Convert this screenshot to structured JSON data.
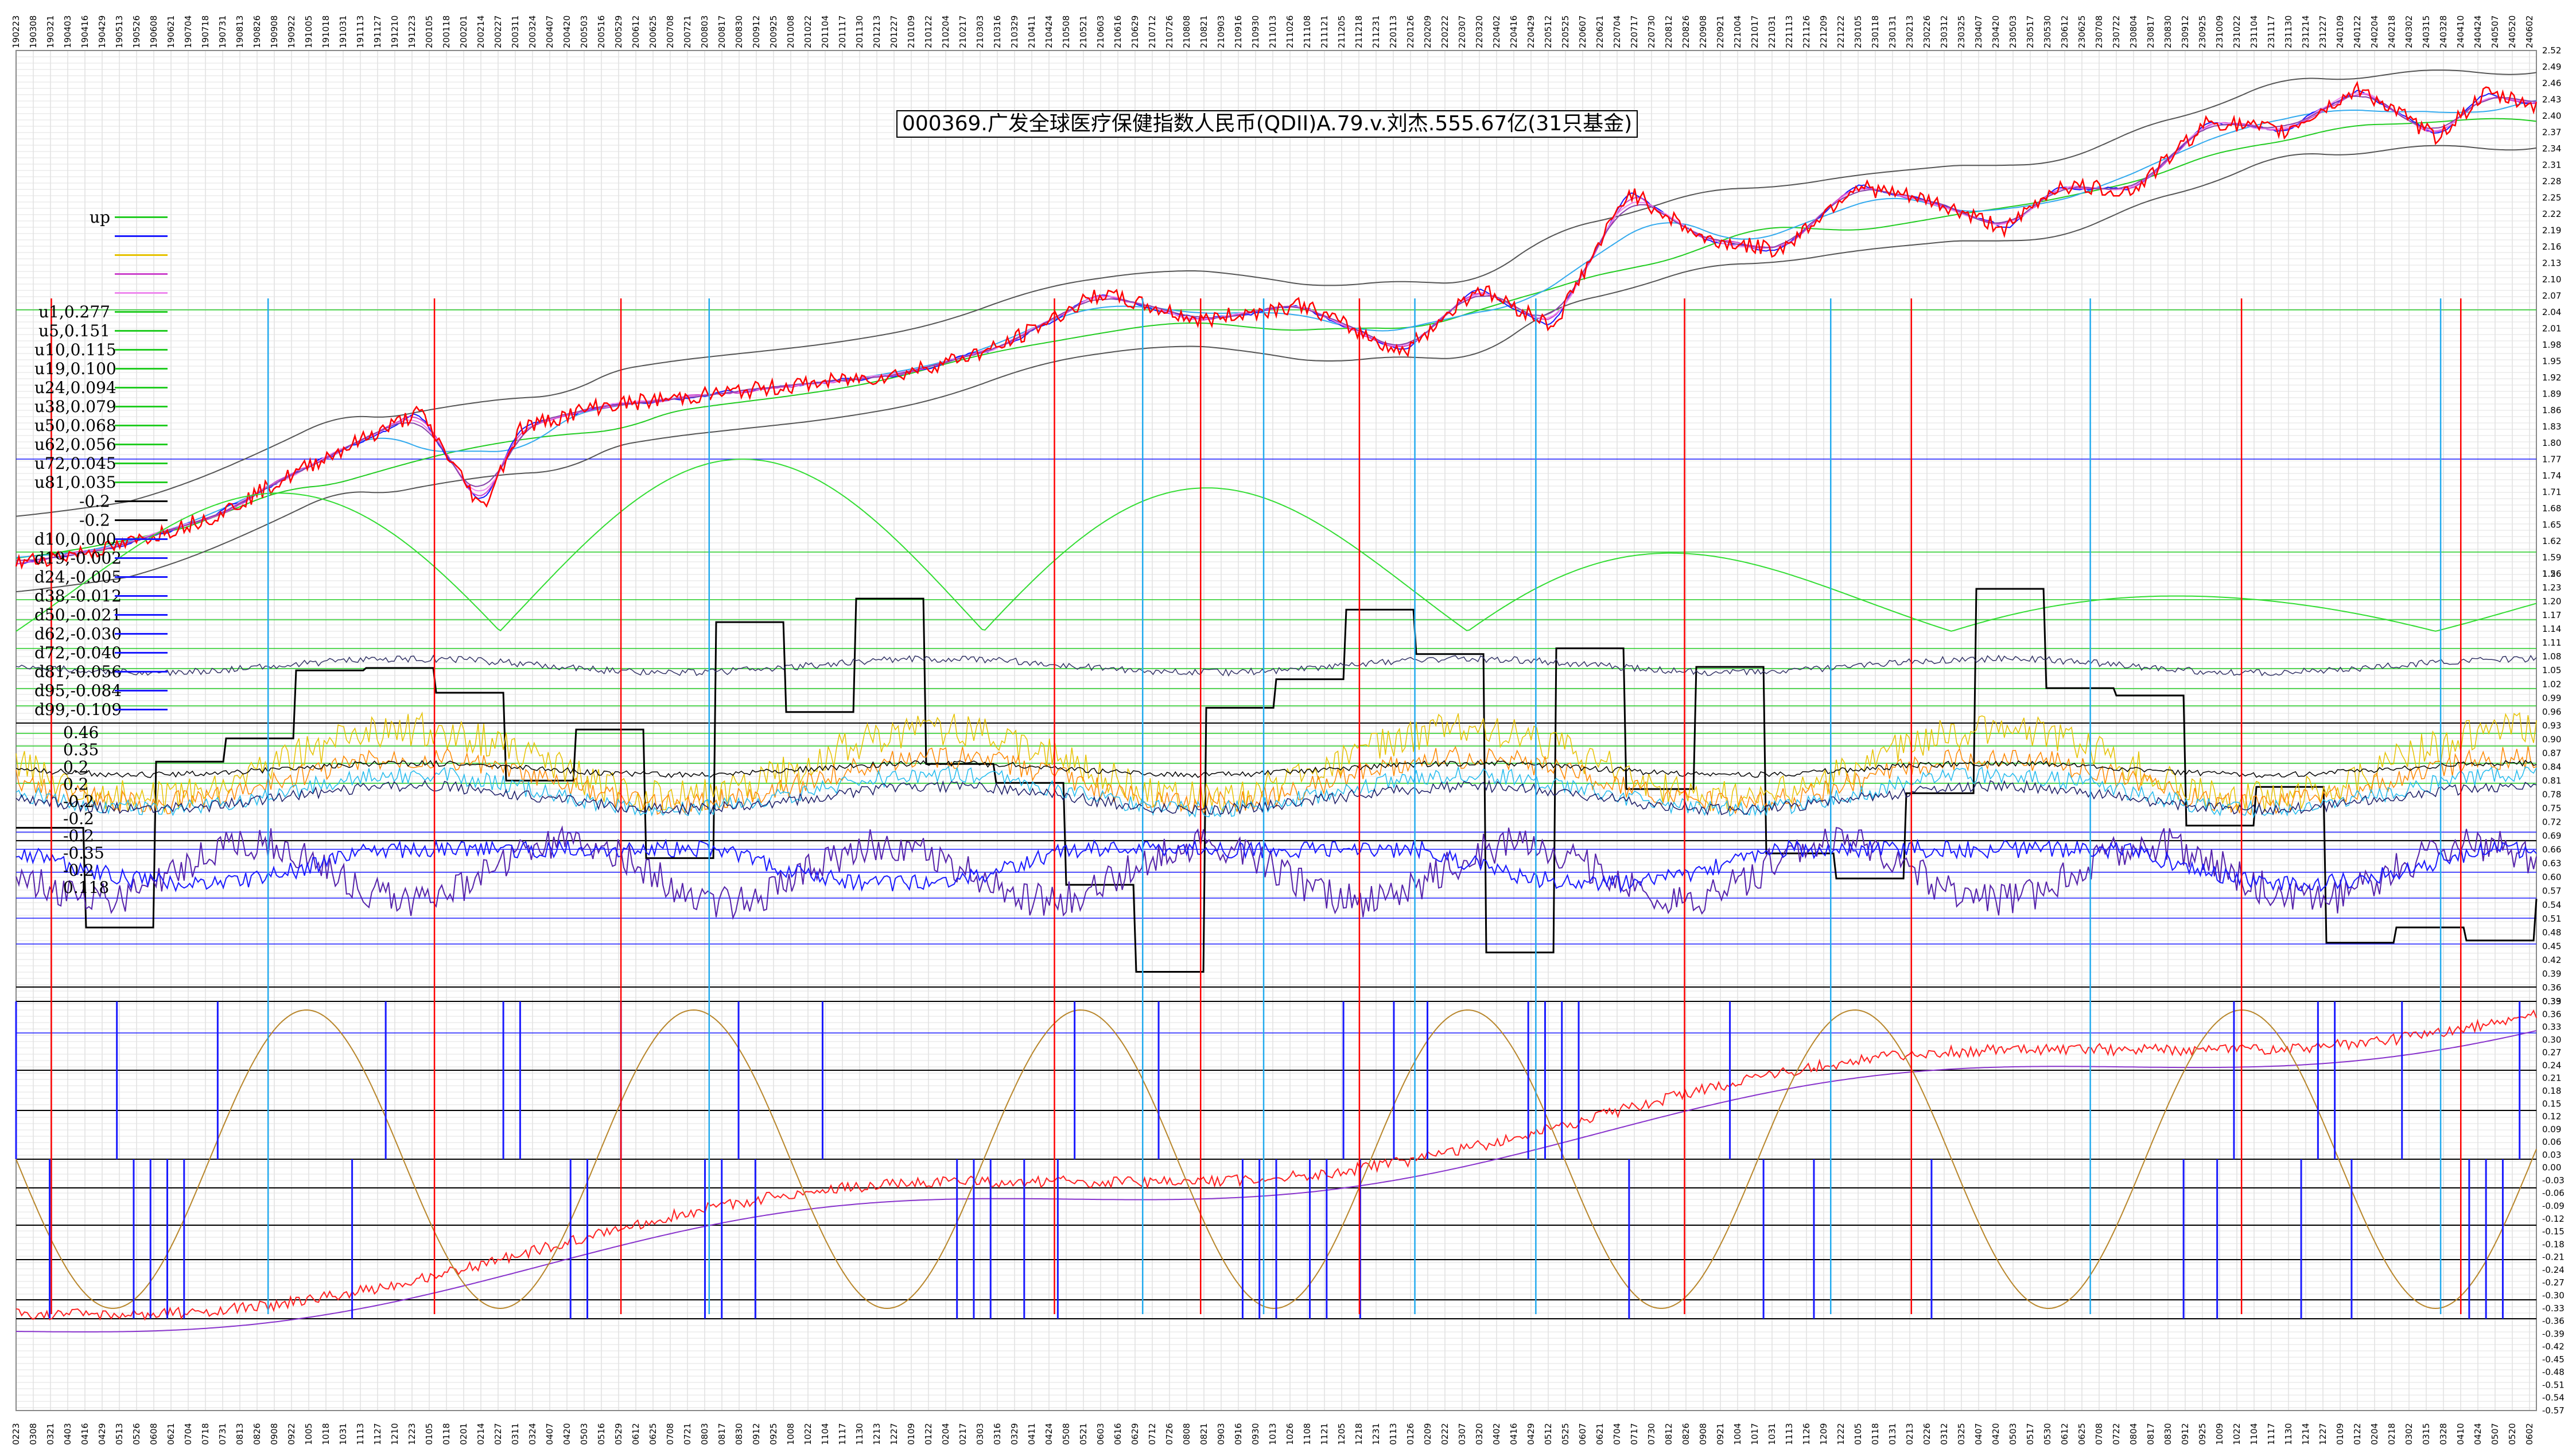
{
  "title": "000369.广发全球医疗保健指数人民币(QDII)A.79.v.刘杰.555.67亿(31只基金)",
  "legend": [
    {
      "label": "up",
      "color": "#22cc22"
    },
    {
      "label": "",
      "color": "#1a1aff"
    },
    {
      "label": "",
      "color": "#e6c200"
    },
    {
      "label": "",
      "color": "#cc44cc"
    },
    {
      "label": "",
      "color": "#ee88ee"
    },
    {
      "label": "u1,0.277",
      "color": "#22cc22"
    },
    {
      "label": "u5,0.151",
      "color": "#22cc22"
    },
    {
      "label": "u10,0.115",
      "color": "#22cc22"
    },
    {
      "label": "u19,0.100",
      "color": "#22cc22"
    },
    {
      "label": "u24,0.094",
      "color": "#22cc22"
    },
    {
      "label": "u38,0.079",
      "color": "#22cc22"
    },
    {
      "label": "u50,0.068",
      "color": "#22cc22"
    },
    {
      "label": "u62,0.056",
      "color": "#22cc22"
    },
    {
      "label": "u72,0.045",
      "color": "#22cc22"
    },
    {
      "label": "u81,0.035",
      "color": "#22cc22"
    },
    {
      "label": "-0.2",
      "color": "#000000"
    },
    {
      "label": "-0.2",
      "color": "#000000"
    },
    {
      "label": "d10,0.000",
      "color": "#1a1aff"
    },
    {
      "label": "d19,-0.002",
      "color": "#1a1aff"
    },
    {
      "label": "d24,-0.005",
      "color": "#1a1aff"
    },
    {
      "label": "d38,-0.012",
      "color": "#1a1aff"
    },
    {
      "label": "d50,-0.021",
      "color": "#1a1aff"
    },
    {
      "label": "d62,-0.030",
      "color": "#1a1aff"
    },
    {
      "label": "d72,-0.040",
      "color": "#1a1aff"
    },
    {
      "label": "d81,-0.056",
      "color": "#1a1aff"
    },
    {
      "label": "d95,-0.084",
      "color": "#1a1aff"
    },
    {
      "label": "d99,-0.109",
      "color": "#1a1aff"
    }
  ],
  "mid_labels": [
    "0.46",
    "0.35",
    "0.2",
    "0.2",
    "-0.2",
    "-0.2",
    "-0.2",
    "-0.35",
    "-0.2",
    "0.118"
  ],
  "chart_data": {
    "type": "line",
    "title": "000369.广发全球医疗保健指数人民币(QDII)A.79.v.刘杰.555.67亿(31只基金)",
    "xlabel": "",
    "ylabel": "",
    "grid": true,
    "x_range_dates": [
      "2019-02-23",
      "2024-06-08"
    ],
    "right_axis_upper": {
      "min": 1.56,
      "max": 2.52,
      "tick_step": 0.03
    },
    "right_axis_middle": {
      "min": 0.32,
      "max": 1.26,
      "tick_step": 0.03
    },
    "right_axis_lower": {
      "min": -0.57,
      "max": 0.39,
      "tick_step": 0.03
    },
    "price_series_anchors": {
      "x_fraction": [
        0,
        0.04,
        0.08,
        0.12,
        0.16,
        0.185,
        0.2,
        0.23,
        0.27,
        0.31,
        0.35,
        0.39,
        0.43,
        0.47,
        0.51,
        0.55,
        0.58,
        0.61,
        0.64,
        0.67,
        0.7,
        0.73,
        0.76,
        0.79,
        0.81,
        0.84,
        0.87,
        0.9,
        0.93,
        0.96,
        0.98,
        1
      ],
      "value": [
        1.58,
        1.61,
        1.67,
        1.77,
        1.86,
        1.68,
        1.83,
        1.87,
        1.89,
        1.91,
        1.93,
        1.98,
        2.08,
        2.03,
        2.06,
        1.97,
        2.09,
        2.02,
        2.27,
        2.18,
        2.16,
        2.28,
        2.25,
        2.2,
        2.28,
        2.27,
        2.4,
        2.38,
        2.46,
        2.37,
        2.45,
        2.43
      ]
    },
    "vertical_markers": {
      "red_x_fraction": [
        0.014,
        0.166,
        0.24,
        0.412,
        0.47,
        0.533,
        0.662,
        0.752,
        0.883,
        0.97
      ],
      "cyan_x_fraction": [
        0.1,
        0.275,
        0.447,
        0.495,
        0.555,
        0.603,
        0.72,
        0.823,
        0.962
      ]
    }
  }
}
